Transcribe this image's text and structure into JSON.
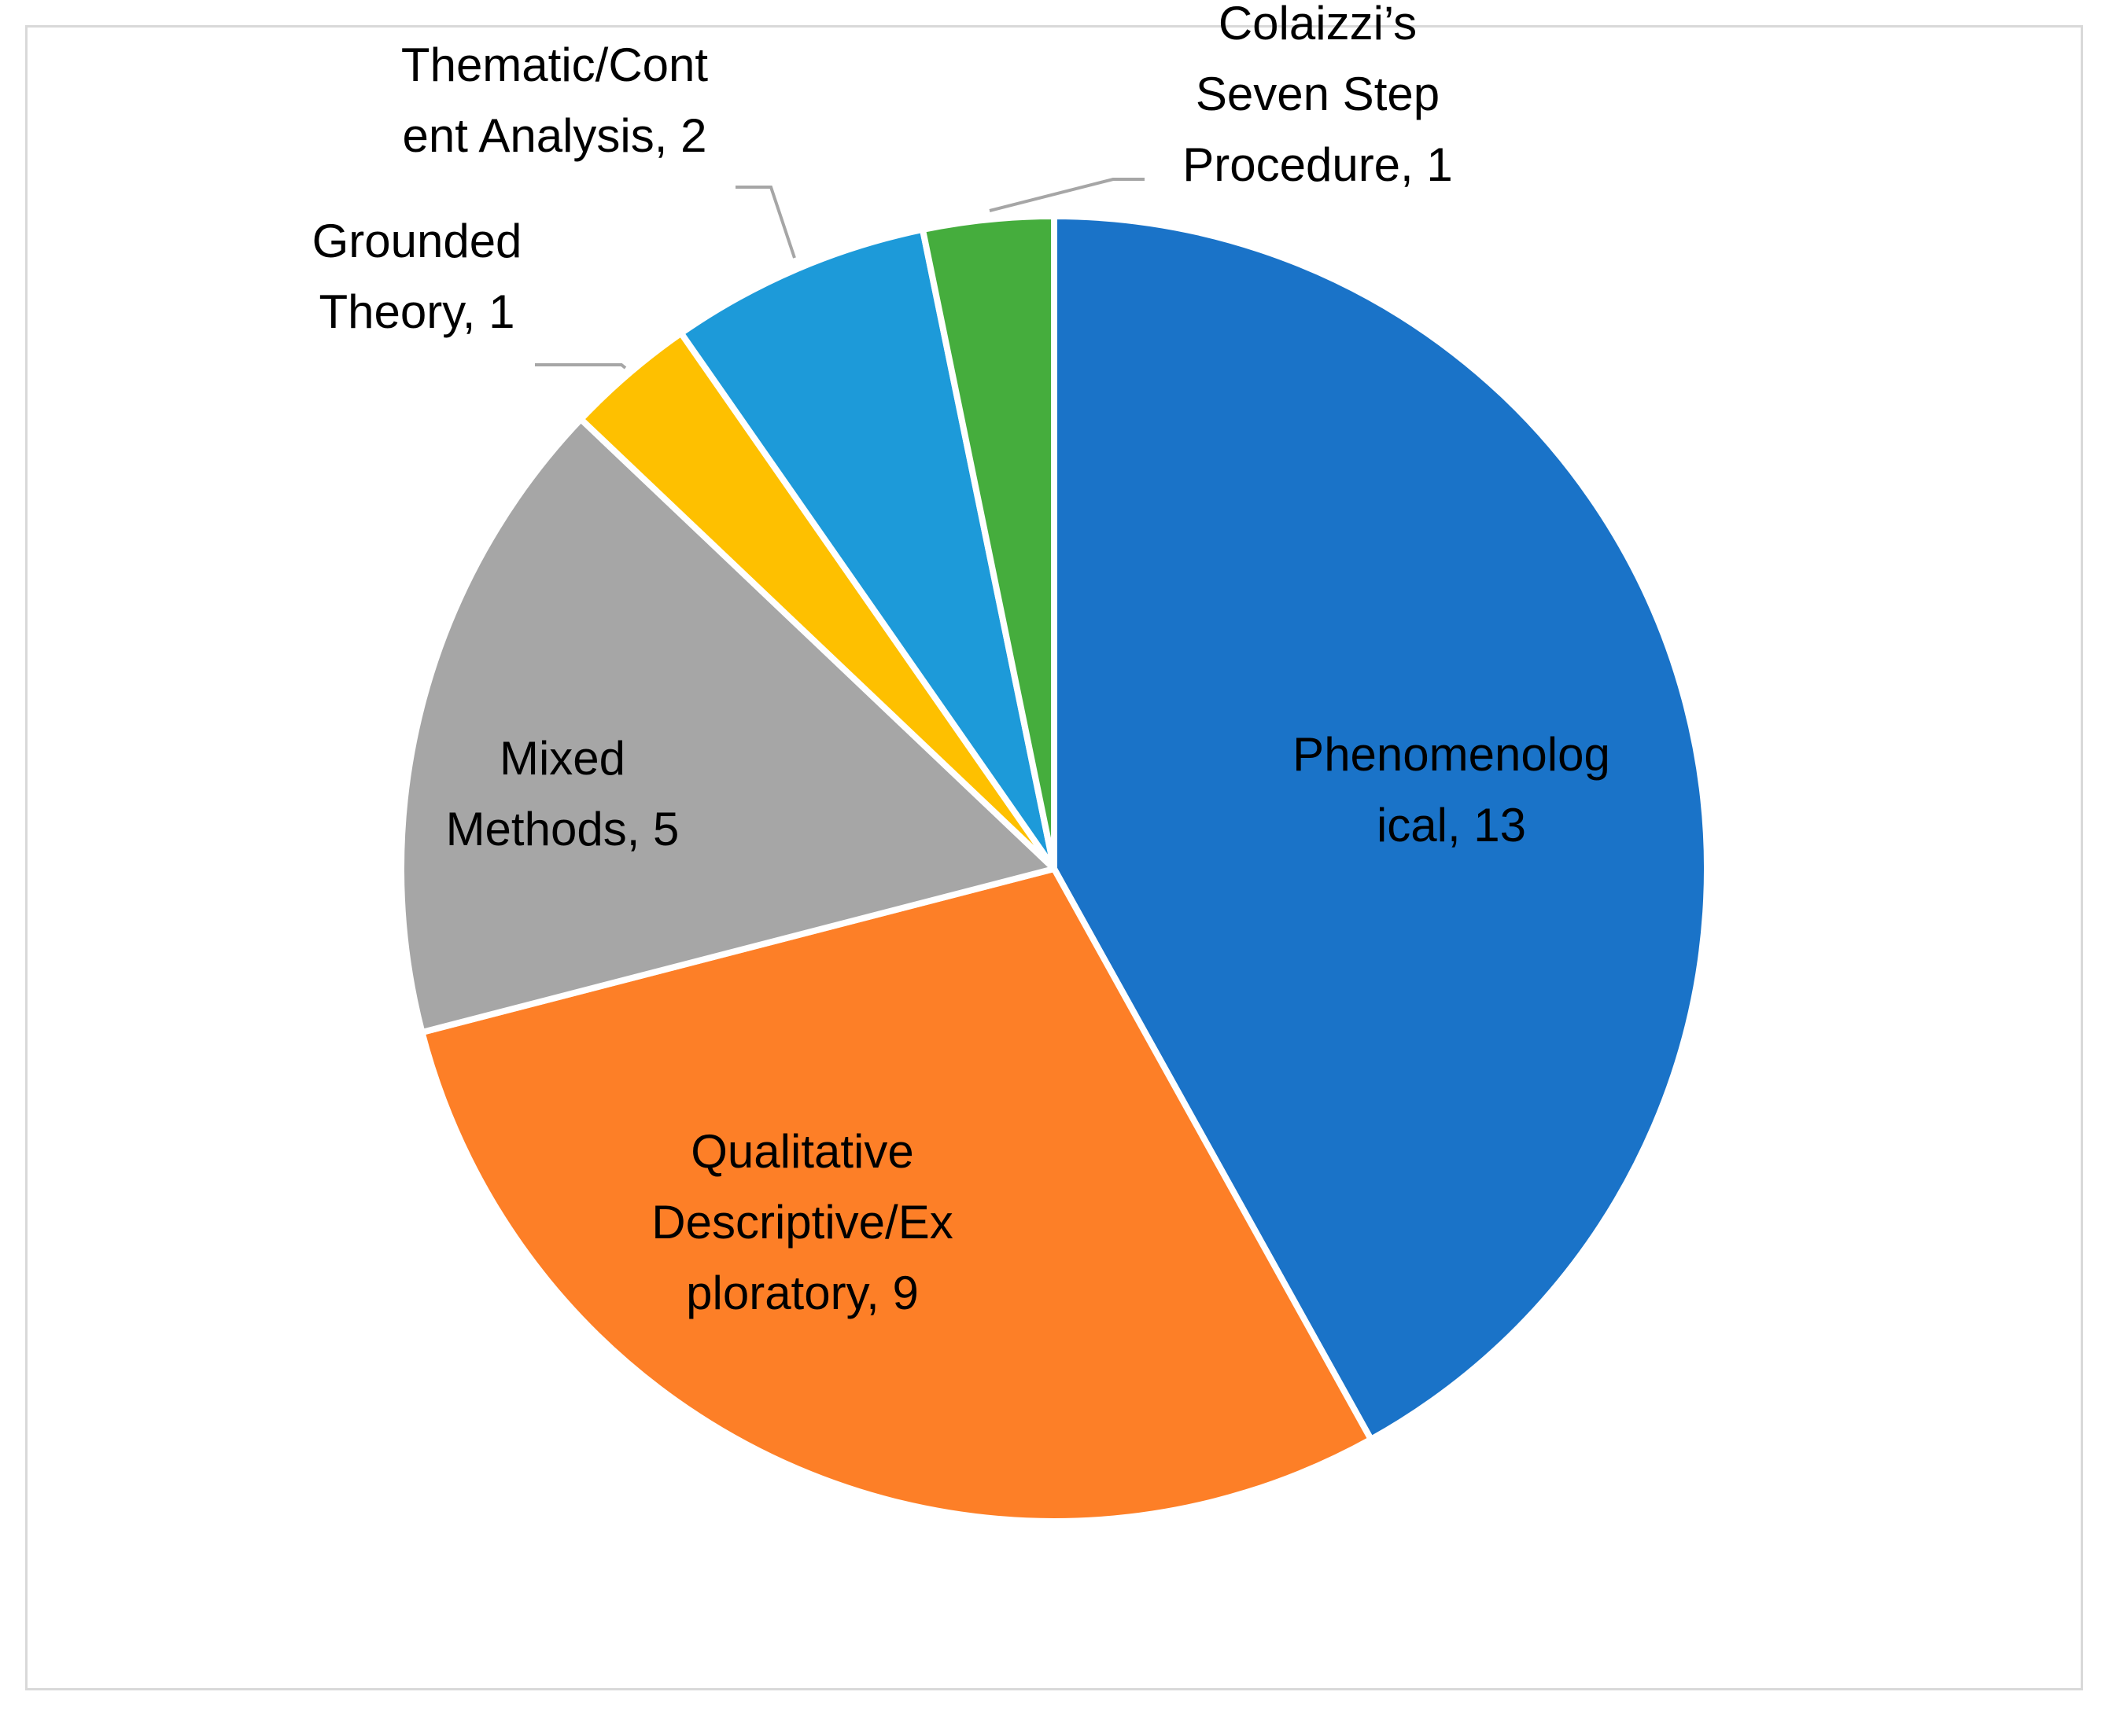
{
  "chart_data": {
    "type": "pie",
    "title": "",
    "slices": [
      {
        "label_lines": [
          "Phenomenolog",
          "ical, 13"
        ],
        "value": 13,
        "color": "#1a73c8"
      },
      {
        "label_lines": [
          "Qualitative",
          "Descriptive/Ex",
          "ploratory, 9"
        ],
        "value": 9,
        "color": "#fd7f27"
      },
      {
        "label_lines": [
          "Mixed",
          "Methods, 5"
        ],
        "value": 5,
        "color": "#a6a6a6"
      },
      {
        "label_lines": [
          "Grounded",
          "Theory, 1"
        ],
        "value": 1,
        "color": "#fec000"
      },
      {
        "label_lines": [
          "Thematic/Cont",
          "ent Analysis, 2"
        ],
        "value": 2,
        "color": "#1d9ad9"
      },
      {
        "label_lines": [
          "Colaizzi’s",
          "Seven Step",
          "Procedure, 1"
        ],
        "value": 1,
        "color": "#45ad3d"
      }
    ],
    "start": "12 o'clock",
    "direction": "clockwise",
    "legend": "none"
  }
}
